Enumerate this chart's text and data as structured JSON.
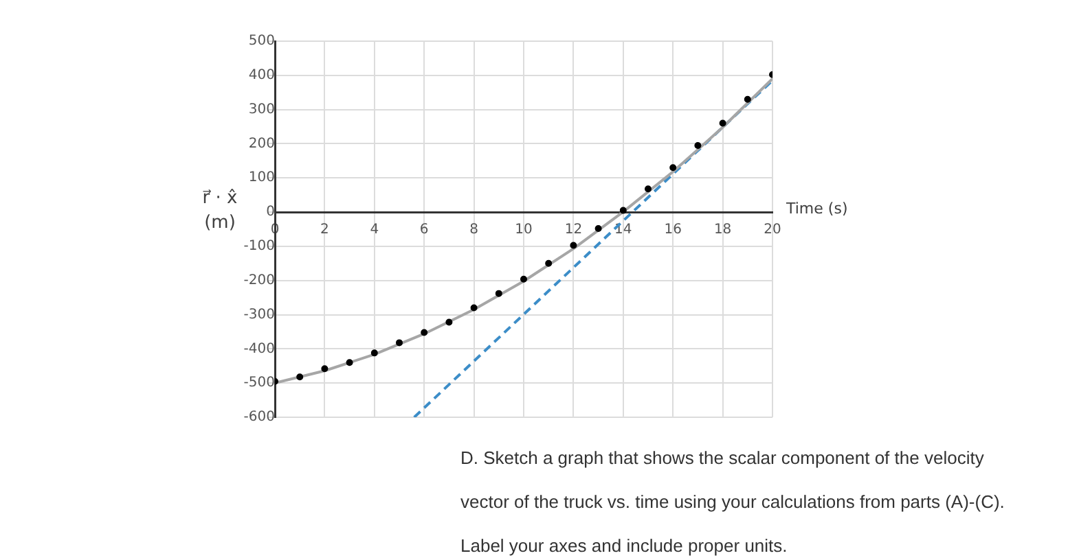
{
  "chart_data": {
    "type": "scatter",
    "xlabel": "Time (s)",
    "ylabel": "r⃗ · x̂ (m)",
    "xlim": [
      0,
      20
    ],
    "xticks": [
      0,
      2,
      4,
      6,
      8,
      10,
      12,
      14,
      16,
      18,
      20
    ],
    "ylim": [
      -600,
      500
    ],
    "yticks": [
      -600,
      -500,
      -400,
      -300,
      -200,
      -100,
      0,
      100,
      200,
      300,
      400,
      500
    ],
    "grid": true,
    "legend": false,
    "marker": "circle",
    "series": [
      {
        "color": "#000000",
        "x": [
          0,
          1,
          2,
          3,
          4,
          5,
          6,
          7,
          8,
          9,
          10,
          11,
          12,
          13,
          14,
          15,
          16,
          17,
          18,
          19,
          20
        ],
        "values": [
          -495,
          -482,
          -458,
          -440,
          -412,
          -382,
          -352,
          -322,
          -280,
          -238,
          -196,
          -150,
          -97,
          -48,
          5,
          68,
          130,
          195,
          260,
          330,
          402
        ]
      },
      {
        "type": "line",
        "marker": "none",
        "color": "#a6a6a6",
        "x": [
          0,
          2,
          4,
          6,
          8,
          10,
          12,
          14,
          16,
          18,
          20
        ],
        "values": [
          -500,
          -464,
          -416,
          -356,
          -285,
          -202,
          -107,
          1,
          118,
          248,
          390
        ]
      },
      {
        "type": "line",
        "marker": "none",
        "line_style": "dashed",
        "color": "#3c8dc8",
        "x": [
          5.6,
          20
        ],
        "values": [
          -600,
          385
        ]
      }
    ],
    "annotations": [
      "D. Sketch a graph that shows the scalar component of the velocity vector of the truck vs. time using your calculations from parts (A)-(C).  Label your axes and include proper units."
    ]
  }
}
